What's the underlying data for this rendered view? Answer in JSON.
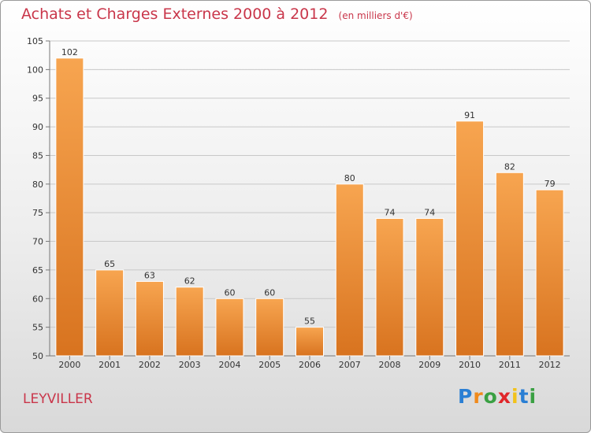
{
  "chart_data": {
    "type": "bar",
    "title": "Achats et Charges Externes 2000 à 2012",
    "subtitle": "(en milliers d'€)",
    "categories": [
      "2000",
      "2001",
      "2002",
      "2003",
      "2004",
      "2005",
      "2006",
      "2007",
      "2008",
      "2009",
      "2010",
      "2011",
      "2012"
    ],
    "values": [
      102,
      65,
      63,
      62,
      60,
      60,
      55,
      80,
      74,
      74,
      91,
      82,
      79
    ],
    "ylim": [
      50,
      105
    ],
    "yticks": [
      50,
      55,
      60,
      65,
      70,
      75,
      80,
      85,
      90,
      95,
      100,
      105
    ],
    "xlabel": "",
    "ylabel": "",
    "grid": true,
    "colors": {
      "bar_top": "#f7a550",
      "bar_bottom": "#d8731f",
      "title": "#c9364a"
    }
  },
  "footer": {
    "place": "LEYVILLER"
  },
  "logo": {
    "letters": [
      "P",
      "r",
      "o",
      "x",
      "i",
      "t",
      "i"
    ],
    "colors": [
      "#2a7fd4",
      "#f08a1c",
      "#3aa043",
      "#e0262a",
      "#f2c21a",
      "#2a7fd4",
      "#3aa043"
    ]
  }
}
